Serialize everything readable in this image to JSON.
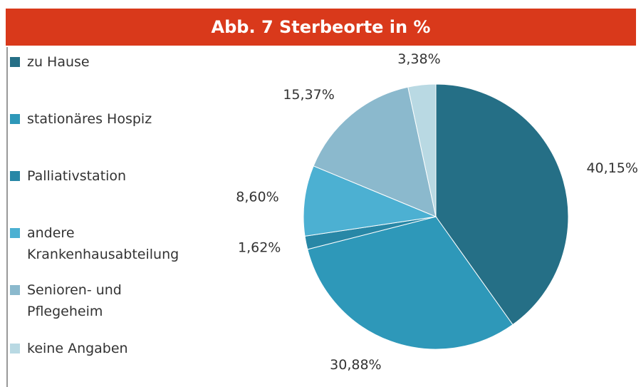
{
  "chart_data": {
    "type": "pie",
    "title": "Abb. 7 Sterbeorte in %",
    "categories": [
      "zu Hause",
      "stationäres Hospiz",
      "Palliativstation",
      "andere Krankenhausabteilung",
      "Senioren- und Pflegeheim",
      "keine Angaben"
    ],
    "values": [
      40.15,
      30.88,
      1.62,
      8.6,
      15.37,
      3.38
    ],
    "value_labels": [
      "40,15%",
      "30,88%",
      "1,62%",
      "8,60%",
      "15,37%",
      "3,38%"
    ],
    "colors": [
      "#256f86",
      "#2e98b9",
      "#2887a6",
      "#4cb0d2",
      "#8bb9cd",
      "#b9d9e3"
    ],
    "legend": "left"
  }
}
